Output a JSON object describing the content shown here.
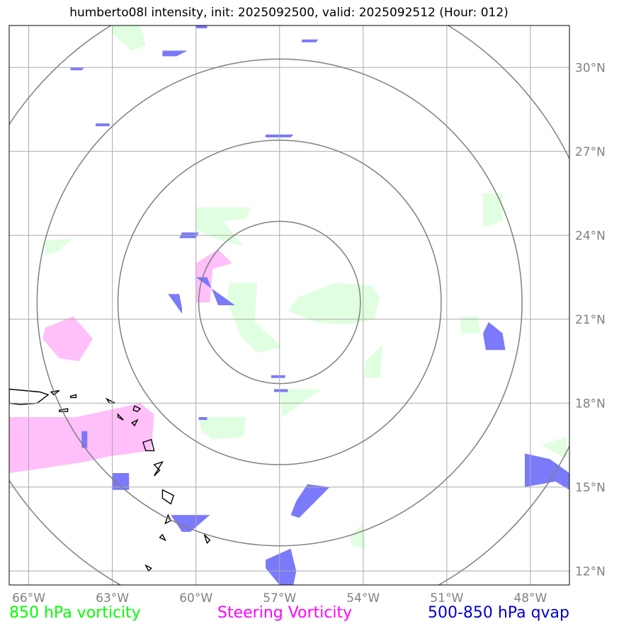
{
  "title": "humberto08l intensity, init: 2025092500, valid: 2025092512 (Hour: 012)",
  "legend": {
    "left_label": "850 hPa vorticity",
    "middle_label": "Steering Vorticity",
    "right_label": "500-850 hPa qvap"
  },
  "colors": {
    "vorticity_850": "#00ff00",
    "steering_vorticity": "#ff00ff",
    "qvap_500_850": "#0000cc",
    "green_fill": "#e0ffe0",
    "pink_fill": "#ffbff9",
    "blue_fill": "#7373fb",
    "grid": "#aaaaaa",
    "rings": "#808080",
    "coast": "#000000"
  },
  "chart_data": {
    "type": "heatmap",
    "projection": "lat-lon map",
    "xlim": [
      -66.7,
      -46.6
    ],
    "ylim": [
      11.5,
      31.5
    ],
    "x_ticks": [
      -66,
      -63,
      -60,
      -57,
      -54,
      -51,
      -48
    ],
    "y_ticks": [
      12,
      15,
      18,
      21,
      24,
      27,
      30
    ],
    "x_tick_labels": [
      "66°W",
      "63°W",
      "60°W",
      "57°W",
      "54°W",
      "51°W",
      "48°W"
    ],
    "y_tick_labels": [
      "12°N",
      "15°N",
      "18°N",
      "21°N",
      "24°N",
      "27°N",
      "30°N"
    ],
    "grid": true,
    "range_rings": {
      "center": [
        -57.0,
        21.6
      ],
      "radii_deg": [
        2.9,
        5.8,
        8.7,
        11.6
      ]
    },
    "fields": [
      {
        "name": "850 hPa vorticity",
        "color": "green",
        "regions": [
          [
            [
              -60.0,
              25.0
            ],
            [
              -59.0,
              25.0
            ],
            [
              -58.0,
              25.0
            ],
            [
              -58.2,
              24.6
            ],
            [
              -59.0,
              24.5
            ],
            [
              -58.3,
              23.6
            ],
            [
              -59.3,
              23.9
            ],
            [
              -60.0,
              24.2
            ]
          ],
          [
            [
              -58.8,
              22.3
            ],
            [
              -57.8,
              22.3
            ],
            [
              -57.9,
              20.9
            ],
            [
              -56.9,
              20.0
            ],
            [
              -57.8,
              19.8
            ],
            [
              -58.4,
              20.4
            ],
            [
              -58.9,
              21.7
            ]
          ],
          [
            [
              -56.3,
              21.8
            ],
            [
              -55.0,
              22.3
            ],
            [
              -53.7,
              22.2
            ],
            [
              -53.4,
              21.8
            ],
            [
              -53.6,
              21.0
            ],
            [
              -54.6,
              20.8
            ],
            [
              -55.7,
              20.9
            ],
            [
              -56.7,
              21.3
            ]
          ],
          [
            [
              -49.7,
              25.5
            ],
            [
              -49.0,
              25.5
            ],
            [
              -49.0,
              24.5
            ],
            [
              -49.7,
              24.3
            ]
          ],
          [
            [
              -50.5,
              21.1
            ],
            [
              -49.9,
              21.1
            ],
            [
              -49.8,
              20.5
            ],
            [
              -50.5,
              20.5
            ]
          ],
          [
            [
              -57.0,
              18.5
            ],
            [
              -55.5,
              18.5
            ],
            [
              -56.9,
              17.5
            ]
          ],
          [
            [
              -53.9,
              19.5
            ],
            [
              -53.3,
              20.1
            ],
            [
              -53.4,
              18.9
            ],
            [
              -54.0,
              18.9
            ]
          ],
          [
            [
              -59.9,
              17.5
            ],
            [
              -58.2,
              17.5
            ],
            [
              -58.3,
              16.8
            ],
            [
              -59.4,
              16.7
            ],
            [
              -59.8,
              17.0
            ]
          ],
          [
            [
              -63.0,
              31.5
            ],
            [
              -62.0,
              31.5
            ],
            [
              -61.8,
              30.8
            ],
            [
              -62.3,
              30.6
            ],
            [
              -63.0,
              31.2
            ]
          ],
          [
            [
              -65.4,
              23.8
            ],
            [
              -64.4,
              23.9
            ],
            [
              -65.0,
              23.4
            ],
            [
              -65.4,
              23.3
            ]
          ],
          [
            [
              -54.5,
              13.2
            ],
            [
              -54.0,
              13.7
            ],
            [
              -53.9,
              12.8
            ],
            [
              -54.4,
              12.9
            ]
          ],
          [
            [
              -47.6,
              16.5
            ],
            [
              -46.7,
              16.8
            ],
            [
              -46.7,
              16.0
            ]
          ]
        ]
      },
      {
        "name": "Steering Vorticity",
        "color": "pink",
        "regions": [
          [
            [
              -60.0,
              23.0
            ],
            [
              -59.2,
              23.5
            ],
            [
              -58.7,
              23.0
            ],
            [
              -59.4,
              22.8
            ],
            [
              -59.5,
              21.6
            ],
            [
              -60.0,
              21.6
            ]
          ],
          [
            [
              -65.4,
              20.7
            ],
            [
              -64.4,
              21.1
            ],
            [
              -63.7,
              20.3
            ],
            [
              -64.2,
              19.5
            ],
            [
              -64.9,
              19.6
            ],
            [
              -65.5,
              20.3
            ]
          ],
          [
            [
              -66.7,
              17.5
            ],
            [
              -64.3,
              17.5
            ],
            [
              -62.9,
              17.8
            ],
            [
              -62.0,
              18.0
            ],
            [
              -61.5,
              17.6
            ],
            [
              -61.6,
              16.3
            ],
            [
              -63.1,
              16.1
            ],
            [
              -64.0,
              15.9
            ],
            [
              -65.3,
              15.7
            ],
            [
              -66.7,
              15.5
            ]
          ]
        ]
      },
      {
        "name": "500-850 hPa qvap",
        "color": "blue",
        "regions": [
          [
            [
              -60.0,
              22.5
            ],
            [
              -59.6,
              22.5
            ],
            [
              -59.2,
              21.5
            ],
            [
              -58.6,
              21.5
            ],
            [
              -59.3,
              22.0
            ],
            [
              -60.0,
              22.5
            ]
          ],
          [
            [
              -61.0,
              21.9
            ],
            [
              -60.6,
              21.9
            ],
            [
              -60.5,
              21.4
            ],
            [
              -60.5,
              21.2
            ]
          ],
          [
            [
              -49.5,
              20.9
            ],
            [
              -49.0,
              20.5
            ],
            [
              -48.9,
              19.9
            ],
            [
              -49.6,
              19.9
            ],
            [
              -49.7,
              20.5
            ]
          ],
          [
            [
              -48.2,
              16.2
            ],
            [
              -47.3,
              16.0
            ],
            [
              -46.6,
              15.5
            ],
            [
              -46.6,
              14.9
            ],
            [
              -47.1,
              15.2
            ],
            [
              -48.2,
              15.0
            ]
          ],
          [
            [
              -56.0,
              15.1
            ],
            [
              -55.2,
              15.0
            ],
            [
              -56.3,
              13.9
            ],
            [
              -56.6,
              14.0
            ],
            [
              -56.4,
              14.5
            ]
          ],
          [
            [
              -57.5,
              12.4
            ],
            [
              -56.6,
              12.8
            ],
            [
              -56.4,
              12.0
            ],
            [
              -56.5,
              11.5
            ],
            [
              -57.0,
              11.5
            ],
            [
              -57.5,
              12.1
            ]
          ],
          [
            [
              -60.9,
              14.0
            ],
            [
              -59.5,
              14.0
            ],
            [
              -60.2,
              13.4
            ],
            [
              -60.5,
              13.4
            ]
          ],
          [
            [
              -63.0,
              15.5
            ],
            [
              -62.4,
              15.5
            ],
            [
              -62.4,
              14.9
            ],
            [
              -63.0,
              14.9
            ]
          ],
          [
            [
              -64.1,
              17.0
            ],
            [
              -63.9,
              17.0
            ],
            [
              -63.9,
              16.4
            ],
            [
              -64.1,
              16.4
            ]
          ],
          [
            [
              -61.2,
              30.6
            ],
            [
              -60.3,
              30.6
            ],
            [
              -60.7,
              30.4
            ],
            [
              -61.2,
              30.4
            ]
          ],
          [
            [
              -64.5,
              30.0
            ],
            [
              -64.0,
              30.0
            ],
            [
              -64.1,
              29.9
            ],
            [
              -64.5,
              29.9
            ]
          ],
          [
            [
              -60.5,
              24.1
            ],
            [
              -59.9,
              24.1
            ],
            [
              -60.0,
              23.9
            ],
            [
              -60.6,
              23.9
            ]
          ],
          [
            [
              -57.5,
              27.6
            ],
            [
              -56.5,
              27.6
            ],
            [
              -56.6,
              27.5
            ],
            [
              -57.5,
              27.5
            ]
          ],
          [
            [
              -57.3,
              19.0
            ],
            [
              -56.8,
              19.0
            ],
            [
              -56.8,
              18.9
            ],
            [
              -57.3,
              18.9
            ]
          ],
          [
            [
              -57.2,
              18.5
            ],
            [
              -56.7,
              18.5
            ],
            [
              -56.7,
              18.4
            ],
            [
              -57.2,
              18.4
            ]
          ],
          [
            [
              -59.9,
              17.5
            ],
            [
              -59.6,
              17.5
            ],
            [
              -59.6,
              17.4
            ],
            [
              -59.9,
              17.4
            ]
          ],
          [
            [
              -56.2,
              31.0
            ],
            [
              -55.6,
              31.0
            ],
            [
              -55.7,
              30.9
            ],
            [
              -56.2,
              30.9
            ]
          ],
          [
            [
              -63.6,
              28.0
            ],
            [
              -63.1,
              28.0
            ],
            [
              -63.1,
              27.9
            ],
            [
              -63.6,
              27.9
            ]
          ],
          [
            [
              -60.0,
              31.5
            ],
            [
              -59.6,
              31.5
            ],
            [
              -59.6,
              31.4
            ],
            [
              -60.0,
              31.4
            ]
          ]
        ]
      }
    ],
    "coastlines": [
      [
        [
          -66.7,
          18.5
        ],
        [
          -65.6,
          18.4
        ],
        [
          -65.3,
          18.3
        ],
        [
          -65.7,
          18.0
        ],
        [
          -66.3,
          17.95
        ],
        [
          -66.7,
          18.0
        ]
      ],
      [
        [
          -65.2,
          18.4
        ],
        [
          -64.9,
          18.45
        ],
        [
          -65.1,
          18.3
        ]
      ],
      [
        [
          -64.5,
          18.25
        ],
        [
          -64.3,
          18.3
        ],
        [
          -64.3,
          18.2
        ],
        [
          -64.5,
          18.2
        ]
      ],
      [
        [
          -64.9,
          17.75
        ],
        [
          -64.6,
          17.8
        ],
        [
          -64.6,
          17.7
        ],
        [
          -64.9,
          17.7
        ]
      ],
      [
        [
          -63.2,
          18.15
        ],
        [
          -62.9,
          18.0
        ],
        [
          -63.1,
          18.0
        ]
      ],
      [
        [
          -62.2,
          17.9
        ],
        [
          -62.0,
          17.8
        ],
        [
          -62.1,
          17.7
        ],
        [
          -62.25,
          17.75
        ]
      ],
      [
        [
          -62.8,
          17.6
        ],
        [
          -62.6,
          17.4
        ],
        [
          -62.8,
          17.5
        ]
      ],
      [
        [
          -62.3,
          17.3
        ],
        [
          -62.1,
          17.4
        ],
        [
          -62.2,
          17.2
        ]
      ],
      [
        [
          -61.9,
          16.6
        ],
        [
          -61.6,
          16.7
        ],
        [
          -61.5,
          16.3
        ],
        [
          -61.8,
          16.3
        ]
      ],
      [
        [
          -61.5,
          15.8
        ],
        [
          -61.3,
          15.6
        ],
        [
          -61.5,
          15.4
        ],
        [
          -61.2,
          15.9
        ]
      ],
      [
        [
          -61.2,
          14.9
        ],
        [
          -60.8,
          14.7
        ],
        [
          -60.9,
          14.4
        ],
        [
          -61.2,
          14.6
        ]
      ],
      [
        [
          -61.0,
          14.0
        ],
        [
          -60.9,
          13.8
        ],
        [
          -61.1,
          13.7
        ]
      ],
      [
        [
          -61.2,
          13.3
        ],
        [
          -61.1,
          13.1
        ],
        [
          -61.3,
          13.2
        ]
      ],
      [
        [
          -59.7,
          13.3
        ],
        [
          -59.5,
          13.1
        ],
        [
          -59.6,
          13.0
        ]
      ],
      [
        [
          -61.8,
          12.2
        ],
        [
          -61.6,
          12.1
        ],
        [
          -61.7,
          12.0
        ]
      ]
    ]
  }
}
